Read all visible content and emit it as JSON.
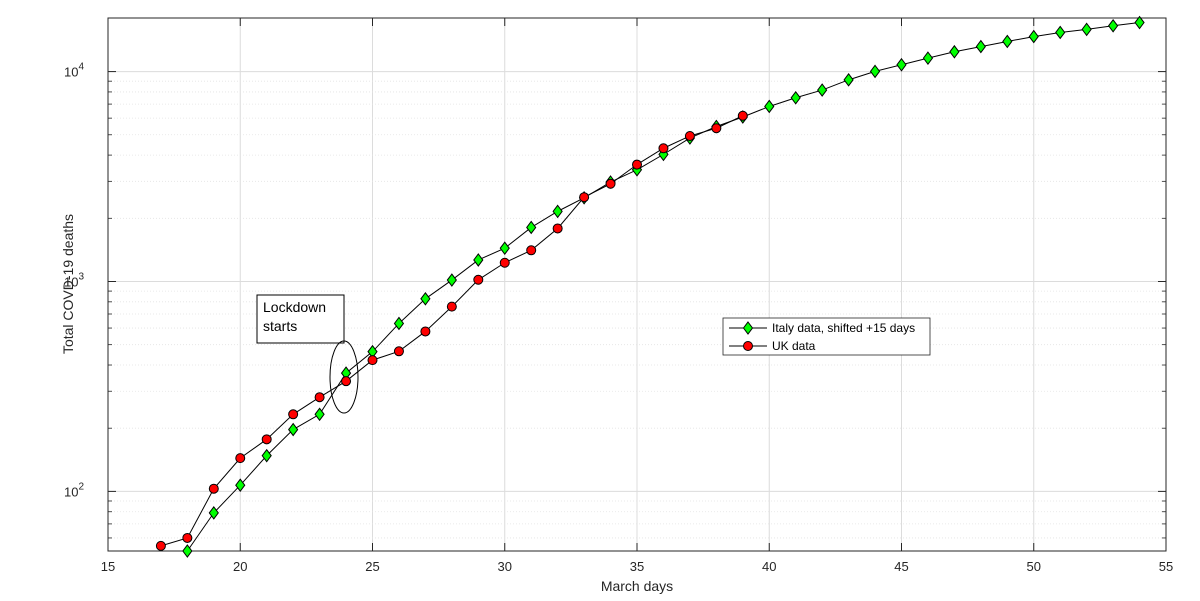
{
  "chart_data": {
    "type": "line",
    "xlabel": "March days",
    "ylabel": "Total COVD-19 deaths",
    "xlim": [
      15,
      55
    ],
    "ylim": [
      52,
      18000
    ],
    "yscale": "log",
    "grid": true,
    "legend_position": "center-right",
    "x_ticks": [
      "15",
      "20",
      "25",
      "30",
      "35",
      "40",
      "45",
      "50",
      "55"
    ],
    "y_ticks": [
      {
        "value": 100,
        "base": "10",
        "exp": "2"
      },
      {
        "value": 1000,
        "base": "10",
        "exp": "3"
      },
      {
        "value": 10000,
        "base": "10",
        "exp": "4"
      }
    ],
    "annotation": {
      "lines": [
        "Lockdown",
        "starts"
      ],
      "x": 24
    },
    "series": [
      {
        "name": "Italy data, shifted +15 days",
        "marker": "diamond",
        "color": "#00ff00",
        "x": [
          18,
          19,
          20,
          21,
          22,
          23,
          24,
          25,
          26,
          27,
          28,
          29,
          30,
          31,
          32,
          33,
          34,
          35,
          36,
          37,
          38,
          39,
          40,
          41,
          42,
          43,
          44,
          45,
          46,
          47,
          48,
          49,
          50,
          51,
          52,
          53,
          54
        ],
        "y": [
          52,
          79,
          107,
          148,
          197,
          233,
          366,
          463,
          631,
          827,
          1016,
          1266,
          1441,
          1809,
          2158,
          2503,
          2978,
          3405,
          4032,
          4825,
          5476,
          6077,
          6820,
          7503,
          8165,
          9134,
          10023,
          10779,
          11591,
          12428,
          13155,
          13915,
          14681,
          15362,
          15887,
          16523,
          17127
        ]
      },
      {
        "name": "UK data",
        "marker": "circle",
        "color": "#ff0000",
        "x": [
          17,
          18,
          19,
          20,
          21,
          22,
          23,
          24,
          25,
          26,
          27,
          28,
          29,
          30,
          31,
          32,
          33,
          34,
          35,
          36,
          37,
          38,
          39
        ],
        "y": [
          55,
          60,
          103,
          144,
          177,
          233,
          281,
          335,
          422,
          465,
          578,
          759,
          1019,
          1228,
          1408,
          1789,
          2521,
          2921,
          3605,
          4313,
          4934,
          5373,
          6159
        ]
      }
    ]
  }
}
